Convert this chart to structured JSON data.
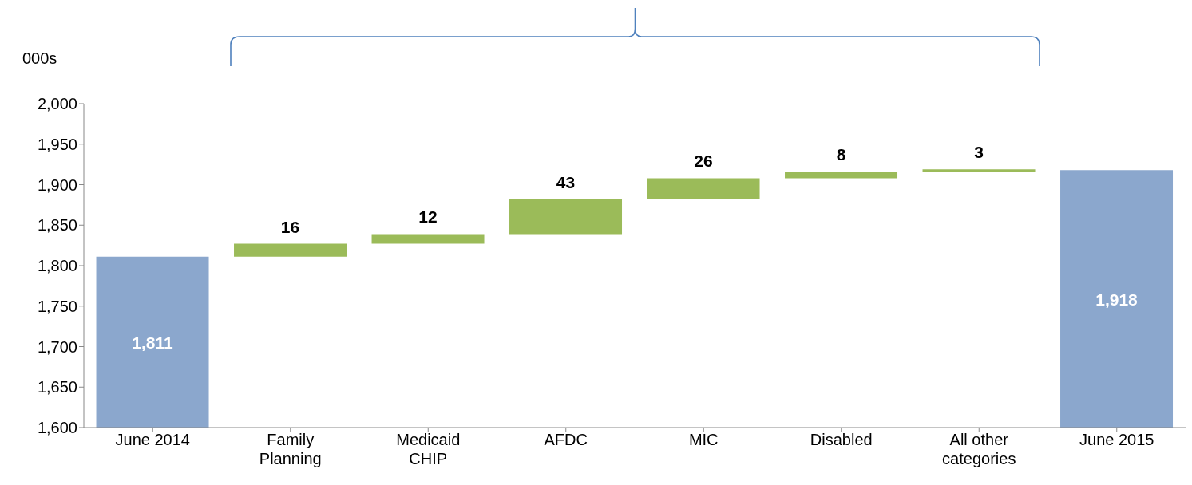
{
  "chart_data": {
    "type": "bar",
    "ylabel": "000s",
    "categories": [
      "June 2014",
      "Family Planning",
      "Medicaid CHIP",
      "AFDC",
      "MIC",
      "Disabled",
      "All other categories",
      "June 2015"
    ],
    "values": [
      1811,
      16,
      12,
      43,
      26,
      8,
      3,
      1918
    ],
    "base": [
      null,
      1811,
      1827,
      1839,
      1882,
      1908,
      1916,
      null
    ],
    "colors": [
      "#8ba7cd",
      "#9bbb59",
      "#9bbb59",
      "#9bbb59",
      "#9bbb59",
      "#9bbb59",
      "#9bbb59",
      "#8ba7cd"
    ],
    "value_labels": [
      "1,811",
      "16",
      "12",
      "43",
      "26",
      "8",
      "3",
      "1,918"
    ],
    "ylim": [
      1600,
      2000
    ],
    "yticks": [
      {
        "value": 1600,
        "label": "1,600"
      },
      {
        "value": 1650,
        "label": "1,650"
      },
      {
        "value": 1700,
        "label": "1,700"
      },
      {
        "value": 1750,
        "label": "1,750"
      },
      {
        "value": 1800,
        "label": "1,800"
      },
      {
        "value": 1850,
        "label": "1,850"
      },
      {
        "value": 1900,
        "label": "1,900"
      },
      {
        "value": 1950,
        "label": "1,950"
      },
      {
        "value": 2000,
        "label": "2,000"
      }
    ],
    "grid": false,
    "legend": false
  }
}
